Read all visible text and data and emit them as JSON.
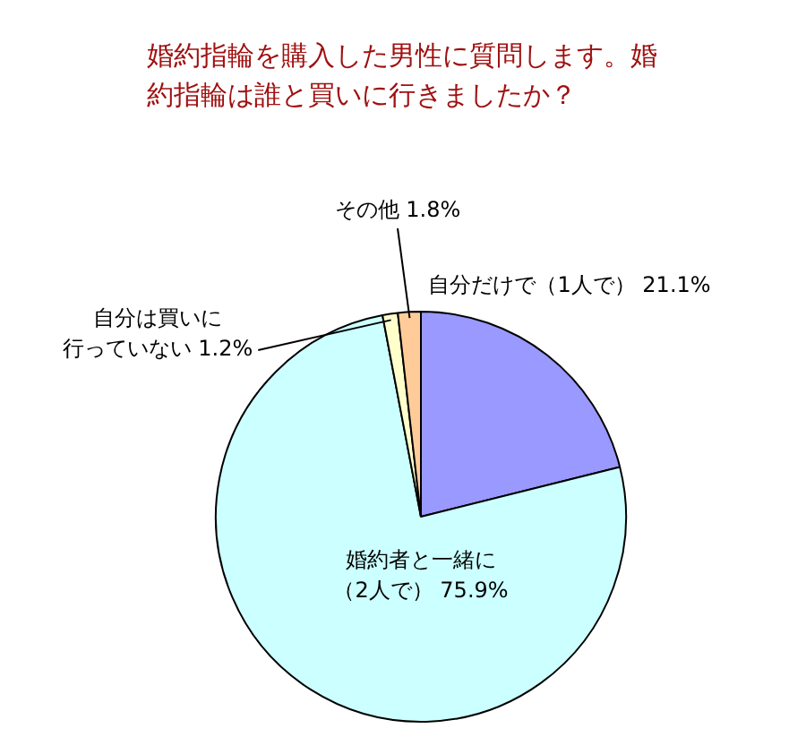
{
  "chart_data": {
    "type": "pie",
    "title": "婚約指輪を購入した男性に質問します。婚約指輪は誰と買いに行きましたか？",
    "categories": [
      "自分だけで（1人で）",
      "婚約者と一緒に（2人で）",
      "自分は買いに行っていない",
      "その他"
    ],
    "values": [
      21.1,
      75.9,
      1.2,
      1.8
    ],
    "value_labels": [
      "21.1%",
      "75.9%",
      "1.2%",
      "1.8%"
    ],
    "colors": [
      "#9999ff",
      "#ccffff",
      "#ffffcc",
      "#ffcc99"
    ],
    "legend": false
  }
}
